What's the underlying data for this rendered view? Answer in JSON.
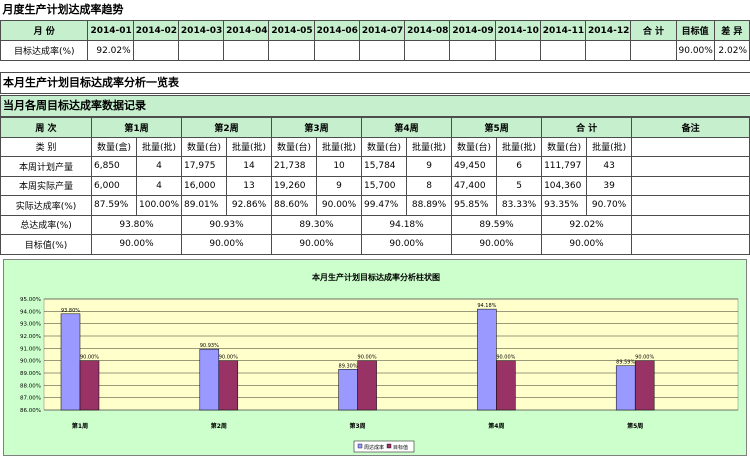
{
  "sections": {
    "monthly_title": "月度生产计划达成率趋势",
    "weekly_title": "本月生产计划目标达成率分析一览表",
    "weekly_sub_title": "当月各周目标达成率数据记录"
  },
  "monthly": {
    "header": [
      "月  份",
      "2014-01",
      "2014-02",
      "2014-03",
      "2014-04",
      "2014-05",
      "2014-06",
      "2014-07",
      "2014-08",
      "2014-09",
      "2014-10",
      "2014-11",
      "2014-12",
      "合  计",
      "目标值",
      "差  异"
    ],
    "row": [
      "目标达成率(%)",
      "92.02%",
      "",
      "",
      "",
      "",
      "",
      "",
      "",
      "",
      "",
      "",
      "",
      "",
      "90.00%",
      "2.02%"
    ]
  },
  "weekly": {
    "header": [
      "周  次",
      "第1周",
      "第2周",
      "第3周",
      "第4周",
      "第5周",
      "合  计",
      "备注"
    ],
    "category_row": [
      "类  别",
      "数量(盒)",
      "批量(批)",
      "数量(台)",
      "批量(批)",
      "数量(台)",
      "批量(批)",
      "数量(台)",
      "批量(批)",
      "数量(台)",
      "批量(批)",
      "数量(台)",
      "批量(批)",
      ""
    ],
    "plan_row": [
      "本周计划产量",
      "6,850",
      "4",
      "17,975",
      "14",
      "21,738",
      "10",
      "15,784",
      "9",
      "49,450",
      "6",
      "111,797",
      "43",
      ""
    ],
    "actual_row": [
      "本周实际产量",
      "6,000",
      "4",
      "16,000",
      "13",
      "19,260",
      "9",
      "15,700",
      "8",
      "47,400",
      "5",
      "104,360",
      "39",
      ""
    ],
    "rate_row": [
      "实际达成率(%)",
      "87.59%",
      "100.00%",
      "89.01%",
      "92.86%",
      "88.60%",
      "90.00%",
      "99.47%",
      "88.89%",
      "95.85%",
      "83.33%",
      "93.35%",
      "90.70%",
      ""
    ],
    "total_rate_row": [
      "总达成率(%)",
      "93.80%",
      "90.93%",
      "89.30%",
      "94.18%",
      "89.59%",
      "92.02%",
      ""
    ],
    "target_row": [
      "目标值(%)",
      "90.00%",
      "90.00%",
      "90.00%",
      "90.00%",
      "90.00%",
      "90.00%",
      ""
    ]
  },
  "chart_data": {
    "type": "bar",
    "title": "本月生产计划目标达成率分析柱状图",
    "categories": [
      "第1周",
      "第2周",
      "第3周",
      "第4周",
      "第5周"
    ],
    "series": [
      {
        "name": "周达成率",
        "values": [
          93.8,
          90.93,
          89.3,
          94.18,
          89.59
        ],
        "labels": [
          "93.80%",
          "90.93%",
          "89.30%",
          "94.18%",
          "89.59%"
        ],
        "color": "#9999ff"
      },
      {
        "name": "目标值",
        "values": [
          90.0,
          90.0,
          90.0,
          90.0,
          90.0
        ],
        "labels": [
          "90.00%",
          "90.00%",
          "90.00%",
          "90.00%",
          "90.00%"
        ],
        "color": "#993366"
      }
    ],
    "ylim": [
      86.0,
      95.0
    ],
    "yticks": [
      "95.00%",
      "94.00%",
      "93.00%",
      "92.00%",
      "91.00%",
      "90.00%",
      "89.00%",
      "88.00%",
      "87.00%",
      "86.00%"
    ],
    "grid": true,
    "legend_position": "bottom",
    "plot_background": "#ffffcc"
  },
  "colors": {
    "header_green": "#c6efce",
    "chart_bg": "#ccffcc"
  }
}
